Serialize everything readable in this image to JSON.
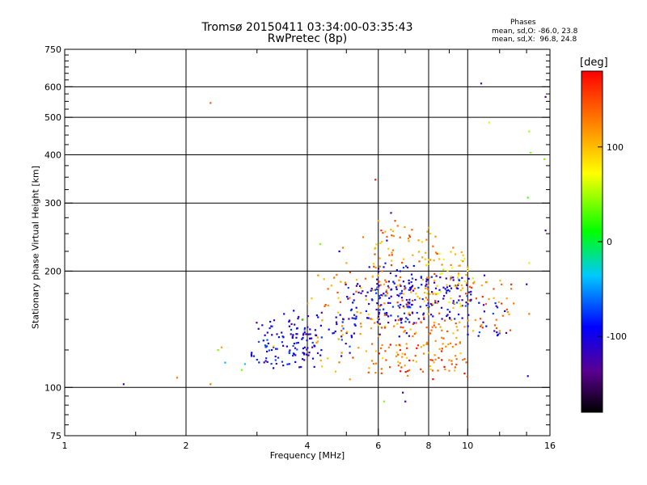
{
  "chart_data": {
    "type": "scatter",
    "title": "Tromsø 20150411 03:34:00-03:35:43",
    "subtitle": "RwPretec (8p)",
    "xlabel": "Frequency [MHz]",
    "ylabel": "Stationary phase Virtual Height [km]",
    "x_scale": "log",
    "y_scale": "log",
    "xlim": [
      1,
      16
    ],
    "ylim": [
      75,
      750
    ],
    "xticks": [
      1,
      2,
      4,
      6,
      8,
      10,
      16
    ],
    "xtick_labels": [
      "1",
      "2",
      "4",
      "6",
      "8",
      "10",
      "16"
    ],
    "yticks": [
      75,
      100,
      200,
      300,
      400,
      500,
      600,
      750
    ],
    "ytick_labels": [
      "75",
      "100",
      "200",
      "300",
      "400",
      "500",
      "600",
      "750"
    ],
    "grid": true,
    "stats": {
      "title": "Phases",
      "o_line": "mean, sd,O: -86.0, 23.8",
      "x_line": "mean, sd,X:  96.8, 24.8"
    },
    "colorbar": {
      "label": "[deg]",
      "range": [
        -180,
        180
      ],
      "ticks": [
        100,
        0,
        -100
      ],
      "tick_labels": [
        "100",
        "0",
        "-100"
      ]
    },
    "points": [
      {
        "x": 1.4,
        "y": 102,
        "phase": -120
      },
      {
        "x": 1.9,
        "y": 106,
        "phase": 130
      },
      {
        "x": 2.3,
        "y": 545,
        "phase": 140
      },
      {
        "x": 2.3,
        "y": 102,
        "phase": 130
      },
      {
        "x": 2.4,
        "y": 125,
        "phase": 40
      },
      {
        "x": 2.45,
        "y": 127,
        "phase": 110
      },
      {
        "x": 2.5,
        "y": 116,
        "phase": -40
      },
      {
        "x": 2.75,
        "y": 111,
        "phase": 40
      },
      {
        "x": 2.8,
        "y": 115,
        "phase": -30
      },
      {
        "x": 3.0,
        "y": 118,
        "phase": -80
      },
      {
        "x": 3.2,
        "y": 130,
        "phase": -100
      },
      {
        "x": 3.3,
        "y": 128,
        "phase": 80
      },
      {
        "x": 3.4,
        "y": 135,
        "phase": -100
      },
      {
        "x": 3.5,
        "y": 155,
        "phase": -110
      },
      {
        "x": 3.6,
        "y": 148,
        "phase": -100
      },
      {
        "x": 3.7,
        "y": 158,
        "phase": -90
      },
      {
        "x": 3.9,
        "y": 150,
        "phase": 30
      },
      {
        "x": 4.0,
        "y": 165,
        "phase": 120
      },
      {
        "x": 4.1,
        "y": 170,
        "phase": 100
      },
      {
        "x": 4.3,
        "y": 235,
        "phase": 40
      },
      {
        "x": 4.5,
        "y": 180,
        "phase": 140
      },
      {
        "x": 4.7,
        "y": 110,
        "phase": 100
      },
      {
        "x": 4.8,
        "y": 225,
        "phase": -100
      },
      {
        "x": 4.9,
        "y": 230,
        "phase": 130
      },
      {
        "x": 5.0,
        "y": 210,
        "phase": 110
      },
      {
        "x": 5.1,
        "y": 105,
        "phase": 120
      },
      {
        "x": 5.3,
        "y": 190,
        "phase": 100
      },
      {
        "x": 5.5,
        "y": 245,
        "phase": 130
      },
      {
        "x": 5.7,
        "y": 205,
        "phase": -100
      },
      {
        "x": 5.9,
        "y": 345,
        "phase": 170
      },
      {
        "x": 6.0,
        "y": 270,
        "phase": 110
      },
      {
        "x": 6.1,
        "y": 255,
        "phase": 160
      },
      {
        "x": 6.2,
        "y": 92,
        "phase": 40
      },
      {
        "x": 6.3,
        "y": 240,
        "phase": -110
      },
      {
        "x": 6.45,
        "y": 283,
        "phase": -130
      },
      {
        "x": 6.6,
        "y": 270,
        "phase": 150
      },
      {
        "x": 6.7,
        "y": 262,
        "phase": 130
      },
      {
        "x": 6.8,
        "y": 200,
        "phase": -100
      },
      {
        "x": 6.9,
        "y": 97,
        "phase": -120
      },
      {
        "x": 7.0,
        "y": 92,
        "phase": -130
      },
      {
        "x": 7.3,
        "y": 220,
        "phase": 110
      },
      {
        "x": 7.6,
        "y": 170,
        "phase": 120
      },
      {
        "x": 7.7,
        "y": 238,
        "phase": 90
      },
      {
        "x": 7.9,
        "y": 185,
        "phase": -110
      },
      {
        "x": 8.2,
        "y": 232,
        "phase": 140
      },
      {
        "x": 8.5,
        "y": 215,
        "phase": 100
      },
      {
        "x": 8.8,
        "y": 180,
        "phase": -100
      },
      {
        "x": 9.2,
        "y": 230,
        "phase": 130
      },
      {
        "x": 9.5,
        "y": 195,
        "phase": 80
      },
      {
        "x": 10.0,
        "y": 205,
        "phase": 120
      },
      {
        "x": 10.5,
        "y": 170,
        "phase": 150
      },
      {
        "x": 10.8,
        "y": 612,
        "phase": -130
      },
      {
        "x": 11.0,
        "y": 195,
        "phase": -110
      },
      {
        "x": 11.3,
        "y": 485,
        "phase": 60
      },
      {
        "x": 11.6,
        "y": 180,
        "phase": 150
      },
      {
        "x": 12.0,
        "y": 140,
        "phase": 120
      },
      {
        "x": 12.5,
        "y": 170,
        "phase": 110
      },
      {
        "x": 13.0,
        "y": 165,
        "phase": 130
      },
      {
        "x": 14.2,
        "y": 460,
        "phase": 50
      },
      {
        "x": 14.3,
        "y": 405,
        "phase": 40
      },
      {
        "x": 14.1,
        "y": 310,
        "phase": 30
      },
      {
        "x": 14.2,
        "y": 210,
        "phase": 60
      },
      {
        "x": 14.0,
        "y": 185,
        "phase": -110
      },
      {
        "x": 14.2,
        "y": 155,
        "phase": 130
      },
      {
        "x": 14.1,
        "y": 107,
        "phase": -100
      },
      {
        "x": 15.6,
        "y": 565,
        "phase": -130
      },
      {
        "x": 15.5,
        "y": 390,
        "phase": 40
      },
      {
        "x": 15.6,
        "y": 255,
        "phase": -120
      }
    ],
    "clusters": [
      {
        "xmin": 2.9,
        "xmax": 4.2,
        "ymin": 112,
        "ymax": 150,
        "phase": -100,
        "n": 95
      },
      {
        "xmin": 3.6,
        "xmax": 5.3,
        "ymin": 120,
        "ymax": 160,
        "phase": -100,
        "n": 60
      },
      {
        "xmin": 4.2,
        "xmax": 6.3,
        "ymin": 108,
        "ymax": 200,
        "phase": 120,
        "n": 70
      },
      {
        "xmin": 4.9,
        "xmax": 6.5,
        "ymin": 150,
        "ymax": 190,
        "phase": -100,
        "n": 45
      },
      {
        "xmin": 5.9,
        "xmax": 7.4,
        "ymin": 135,
        "ymax": 210,
        "phase": -100,
        "n": 80
      },
      {
        "xmin": 5.8,
        "xmax": 8.5,
        "ymin": 140,
        "ymax": 262,
        "phase": 125,
        "n": 110
      },
      {
        "xmin": 6.8,
        "xmax": 10.2,
        "ymin": 150,
        "ymax": 195,
        "phase": -100,
        "n": 110
      },
      {
        "xmin": 6.6,
        "xmax": 9.8,
        "ymin": 110,
        "ymax": 150,
        "phase": 125,
        "n": 80
      },
      {
        "xmin": 7.8,
        "xmax": 10.3,
        "ymin": 160,
        "ymax": 225,
        "phase": 90,
        "n": 60
      },
      {
        "xmin": 9.8,
        "xmax": 13.0,
        "ymin": 140,
        "ymax": 190,
        "phase": 130,
        "n": 35
      },
      {
        "xmin": 9.8,
        "xmax": 12.5,
        "ymin": 135,
        "ymax": 170,
        "phase": -100,
        "n": 22
      },
      {
        "xmin": 6.0,
        "xmax": 10.0,
        "ymin": 104,
        "ymax": 130,
        "phase": 150,
        "n": 35
      }
    ]
  }
}
